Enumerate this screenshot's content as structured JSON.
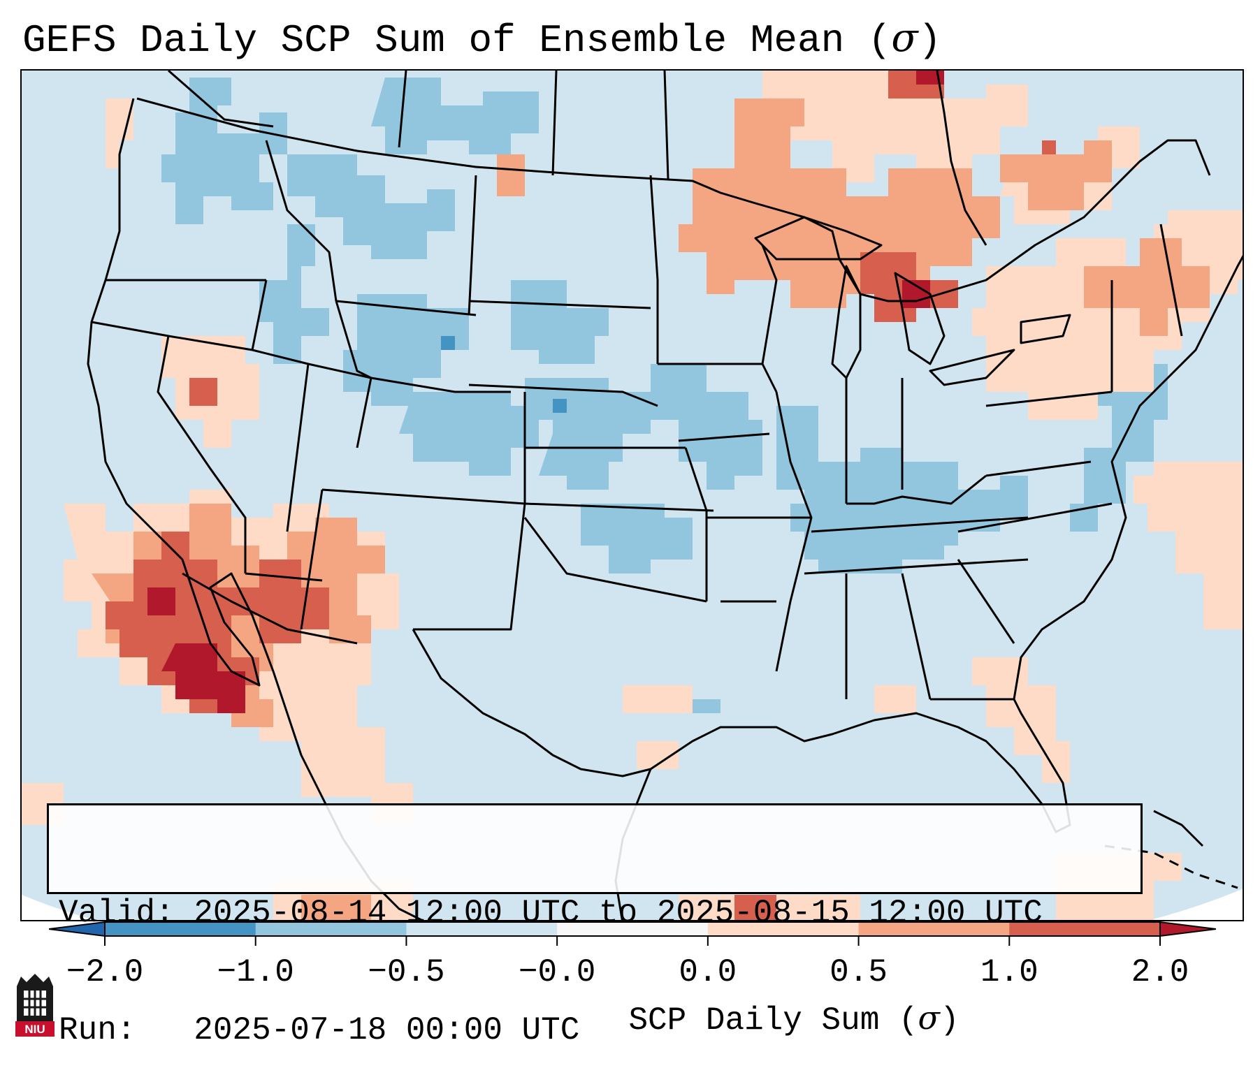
{
  "title": {
    "main": "GEFS Daily SCP Sum of Ensemble Mean (",
    "symbol": "σ",
    "close": ")"
  },
  "info": {
    "valid_label": "Valid:",
    "valid_value": "2025-08-14 12:00 UTC to 2025-08-15 12:00 UTC",
    "run_label": "Run:",
    "run_value": "2025-07-18 00:00 UTC"
  },
  "colorbar": {
    "label": "SCP Daily Sum (",
    "label_symbol": "σ",
    "label_close": ")",
    "ticks": [
      "−2.0",
      "−1.0",
      "−0.5",
      "−0.0",
      "0.0",
      "0.5",
      "1.0",
      "2.0"
    ],
    "colors": [
      "#4393c3",
      "#92c5de",
      "#d1e5f0",
      "#f7f7f7",
      "#fddbc7",
      "#f4a582",
      "#d6604d"
    ],
    "under_color": "#2166ac",
    "over_color": "#b2182b"
  },
  "logo": {
    "text": "NIU"
  },
  "chart_data": {
    "type": "heatmap",
    "title": "GEFS Daily SCP Sum of Ensemble Mean (σ)",
    "variable": "SCP Daily Sum (σ)",
    "levels": [
      -2.0,
      -1.0,
      -0.5,
      -0.0,
      0.0,
      0.5,
      1.0,
      2.0
    ],
    "background_level": "-0.5 to -0.0",
    "anomaly_regions": [
      {
        "region": "Southwest US / Gulf of California",
        "range": "1.0 to 2.0+"
      },
      {
        "region": "Arizona / Utah",
        "range": "0.5 to 1.0"
      },
      {
        "region": "Upper Great Lakes / Ontario",
        "range": "0.5 to 2.0+"
      },
      {
        "region": "Pennsylvania / New York / New England",
        "range": "0.0 to 0.5"
      },
      {
        "region": "Florida / Atlantic",
        "range": "0.0 to 0.5"
      },
      {
        "region": "Northern Rockies / Plains",
        "range": "-1.0 to -0.5"
      },
      {
        "region": "Ohio & Tennessee Valleys",
        "range": "-1.0 to -0.5"
      },
      {
        "region": "Mid-Atlantic Coast",
        "range": "-1.0 to -0.5"
      }
    ]
  }
}
